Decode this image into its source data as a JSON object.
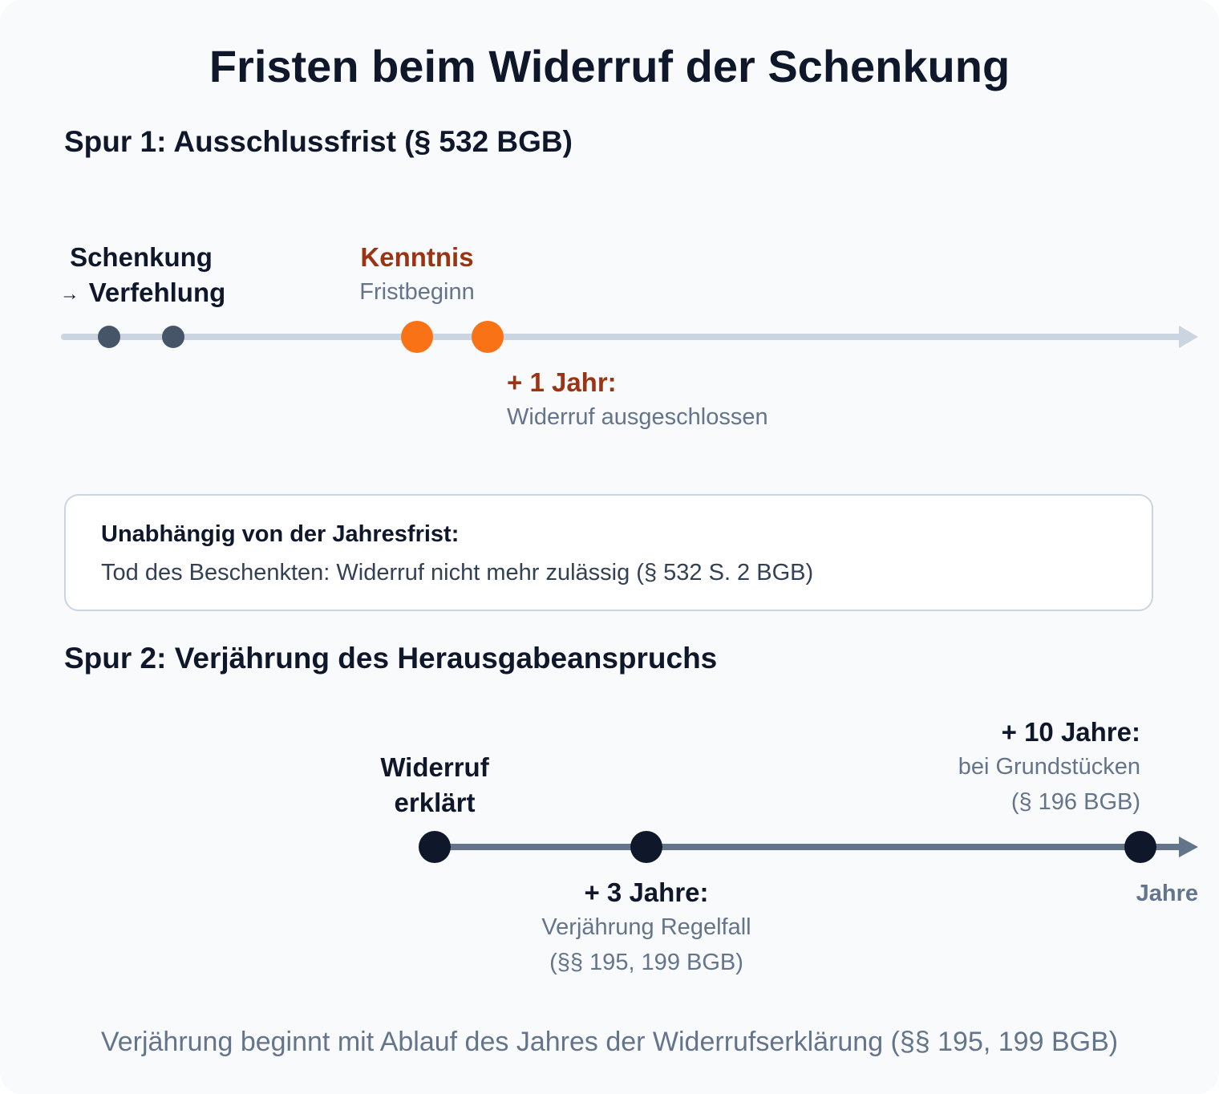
{
  "title": "Fristen beim Widerruf der Schenkung",
  "lane1": {
    "heading": "Spur 1: Ausschlussfrist (§ 532 BGB)",
    "events": {
      "schenkung": "Schenkung",
      "verfehlung_arrow": "→",
      "verfehlung": "Verfehlung",
      "kenntnis": "Kenntnis",
      "fristbeginn": "Fristbeginn",
      "plus_one_year": "+ 1 Jahr:",
      "ausgeschlossen": "Widerruf ausgeschlossen"
    },
    "colors": {
      "line": "#cbd5e1",
      "dot_neutral": "#475569",
      "dot_accent": "#f97316",
      "accent_text": "#9a3412"
    }
  },
  "info_box": {
    "heading": "Unabhängig von der Jahresfrist:",
    "text": "Tod des Beschenkten: Widerruf nicht mehr zulässig (§ 532 S. 2 BGB)"
  },
  "lane2": {
    "heading": "Spur 2: Verjährung des Herausgabeanspruchs",
    "events": {
      "widerruf_line1": "Widerruf",
      "widerruf_line2": "erklärt",
      "three_years": "+ 3 Jahre:",
      "three_years_sub1": "Verjährung Regelfall",
      "three_years_sub2": "(§§ 195, 199 BGB)",
      "ten_years": "+ 10 Jahre:",
      "ten_years_sub1": "bei Grundstücken",
      "ten_years_sub2": "(§ 196 BGB)"
    },
    "axis_label": "Jahre",
    "colors": {
      "line": "#64748b",
      "dot": "#0f172a"
    }
  },
  "footnote": "Verjährung beginnt mit Ablauf des Jahres der Widerrufserklärung (§§ 195, 199 BGB)"
}
